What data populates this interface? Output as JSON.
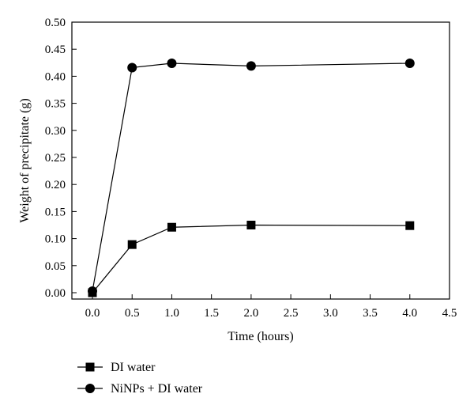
{
  "chart_data": {
    "type": "line",
    "title": "",
    "xlabel": "Time (hours)",
    "ylabel": "Weight of precipitate (g)",
    "xlim": [
      0.0,
      4.5
    ],
    "ylim": [
      0.0,
      0.5
    ],
    "x_ticks": [
      "0.0",
      "0.5",
      "1.0",
      "1.5",
      "2.0",
      "2.5",
      "3.0",
      "3.5",
      "4.0",
      "4.5"
    ],
    "y_ticks": [
      "0.00",
      "0.05",
      "0.10",
      "0.15",
      "0.20",
      "0.25",
      "0.30",
      "0.35",
      "0.40",
      "0.45",
      "0.50"
    ],
    "grid": false,
    "legend_position": "bottom-left, below plot",
    "series": [
      {
        "name": "DI water",
        "marker": "square",
        "color": "#000000",
        "x": [
          0.0,
          0.5,
          1.0,
          2.0,
          4.0
        ],
        "values": [
          0.0,
          0.089,
          0.121,
          0.125,
          0.124
        ]
      },
      {
        "name": "NiNPs + DI water",
        "marker": "circle",
        "color": "#000000",
        "x": [
          0.0,
          0.5,
          1.0,
          2.0,
          4.0
        ],
        "values": [
          0.003,
          0.416,
          0.424,
          0.419,
          0.424
        ]
      }
    ]
  }
}
